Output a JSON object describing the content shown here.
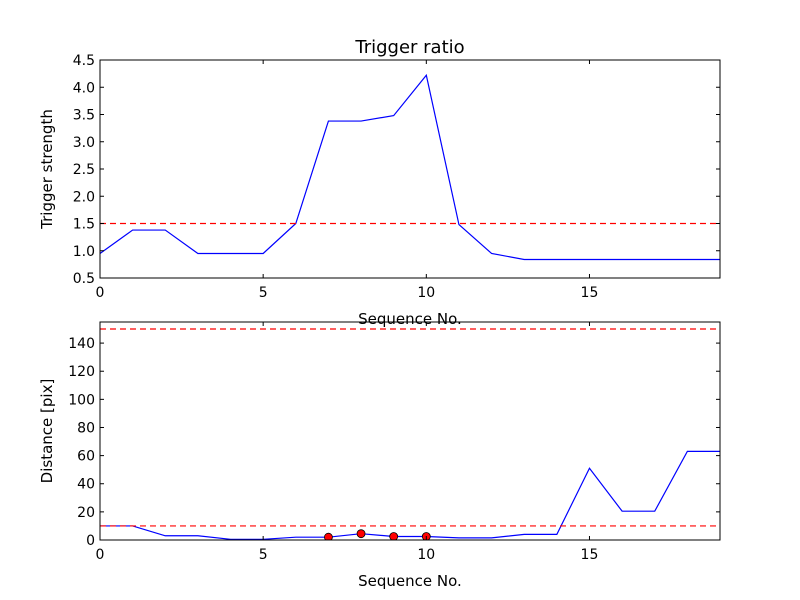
{
  "chart_data": [
    {
      "type": "line",
      "title": "Trigger ratio",
      "xlabel": "Sequence No.",
      "ylabel": "Trigger strength",
      "xlim": [
        0,
        19
      ],
      "ylim": [
        0.5,
        4.5
      ],
      "xticks": [
        0,
        5,
        10,
        15
      ],
      "yticks": [
        0.5,
        1.0,
        1.5,
        2.0,
        2.5,
        3.0,
        3.5,
        4.0,
        4.5
      ],
      "ytick_labels": [
        "0.5",
        "1.0",
        "1.5",
        "2.0",
        "2.5",
        "3.0",
        "3.5",
        "4.0",
        "4.5"
      ],
      "grid": false,
      "series": [
        {
          "color": "#0000ff",
          "x": [
            0,
            1,
            2,
            3,
            4,
            5,
            6,
            7,
            8,
            9,
            10,
            11,
            12,
            13,
            14,
            15,
            16,
            17,
            18,
            19
          ],
          "values": [
            0.95,
            1.38,
            1.38,
            0.95,
            0.95,
            0.95,
            1.5,
            3.38,
            3.38,
            3.48,
            4.22,
            1.48,
            0.95,
            0.84,
            0.84,
            0.84,
            0.84,
            0.84,
            0.84,
            0.84
          ]
        }
      ],
      "hlines": [
        {
          "y": 1.5,
          "color": "#ff0000",
          "style": "dashed"
        }
      ],
      "markers": []
    },
    {
      "type": "line",
      "title": "",
      "xlabel": "Sequence No.",
      "ylabel": "Distance [pix]",
      "xlim": [
        0,
        19
      ],
      "ylim": [
        0,
        155
      ],
      "xticks": [
        0,
        5,
        10,
        15
      ],
      "yticks": [
        0,
        20,
        40,
        60,
        80,
        100,
        120,
        140
      ],
      "ytick_labels": [
        "0",
        "20",
        "40",
        "60",
        "80",
        "100",
        "120",
        "140"
      ],
      "grid": false,
      "series": [
        {
          "color": "#0000ff",
          "x": [
            0,
            1,
            2,
            3,
            4,
            5,
            6,
            7,
            8,
            9,
            10,
            11,
            12,
            13,
            14,
            15,
            16,
            17,
            18,
            19
          ],
          "values": [
            10,
            10,
            3,
            3,
            0.5,
            0.5,
            2,
            2,
            4.5,
            2.5,
            2.5,
            1.5,
            1.5,
            4,
            4,
            51,
            20.5,
            20.5,
            63,
            63
          ]
        }
      ],
      "hlines": [
        {
          "y": 150,
          "color": "#ff0000",
          "style": "dashed"
        },
        {
          "y": 10,
          "color": "#ff0000",
          "style": "dashed"
        }
      ],
      "markers": [
        {
          "x": 7,
          "y": 2,
          "color": "#ff0000"
        },
        {
          "x": 8,
          "y": 4.5,
          "color": "#ff0000"
        },
        {
          "x": 9,
          "y": 2.5,
          "color": "#ff0000"
        },
        {
          "x": 10,
          "y": 2.5,
          "color": "#ff0000"
        }
      ]
    }
  ]
}
